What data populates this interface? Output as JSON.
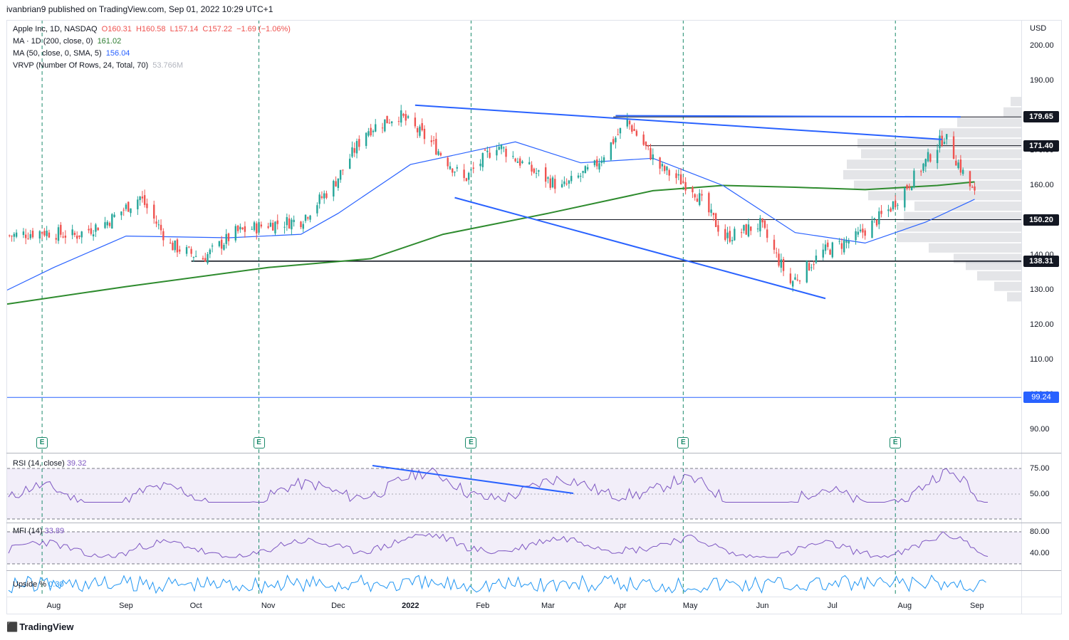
{
  "publisher": "ivanbrian9 published on TradingView.com, Sep 01, 2022 10:29 UTC+1",
  "legend": {
    "symbol": "Apple Inc, 1D, NASDAQ",
    "open": "O160.31",
    "high": "H160.58",
    "low": "L157.14",
    "close": "C157.22",
    "change": "−1.69 (−1.06%)",
    "ma200_label": "MA · 1D (200, close, 0)",
    "ma200_value": "161.02",
    "ma50_label": "MA (50, close, 0, SMA, 5)",
    "ma50_value": "156.04",
    "vrvp_label": "VRVP (Number Of Rows, 24, Total, 70)",
    "vrvp_value": "53.766M"
  },
  "currency": "USD",
  "price_axis": [
    "200.00",
    "190.00",
    "180.00",
    "170.00",
    "160.00",
    "150.00",
    "140.00",
    "130.00",
    "120.00",
    "110.00",
    "100.00",
    "90.00"
  ],
  "price_boxes": [
    {
      "label": "179.65",
      "kind": "level"
    },
    {
      "label": "171.40",
      "kind": "level"
    },
    {
      "label": "150.20",
      "kind": "level"
    },
    {
      "label": "138.31",
      "kind": "level"
    },
    {
      "label": "99.24",
      "kind": "hline"
    }
  ],
  "time_axis": [
    {
      "label": "Aug",
      "bold": false
    },
    {
      "label": "Sep",
      "bold": false
    },
    {
      "label": "Oct",
      "bold": false
    },
    {
      "label": "Nov",
      "bold": false
    },
    {
      "label": "Dec",
      "bold": false
    },
    {
      "label": "2022",
      "bold": true
    },
    {
      "label": "Feb",
      "bold": false
    },
    {
      "label": "Mar",
      "bold": false
    },
    {
      "label": "Apr",
      "bold": false
    },
    {
      "label": "May",
      "bold": false
    },
    {
      "label": "Jun",
      "bold": false
    },
    {
      "label": "Jul",
      "bold": false
    },
    {
      "label": "Aug",
      "bold": false
    },
    {
      "label": "Sep",
      "bold": false
    }
  ],
  "earnings_marker": "E",
  "rsi": {
    "label": "RSI (14, close)",
    "value": "39.32",
    "ticks": [
      "75.00",
      "50.00"
    ]
  },
  "mfi": {
    "label": "MFI (14)",
    "value": "33.89",
    "ticks": [
      "80.00",
      "40.00"
    ]
  },
  "upside": {
    "label": "Upside %",
    "value": "0.30"
  },
  "footer": "TradingView",
  "colors": {
    "up": "#26a69a",
    "down": "#ef5350",
    "ma200": "#2e8b2e",
    "ma50": "#2962ff",
    "trend": "#2962ff",
    "osc": "#7e57c2",
    "upside": "#2196f3",
    "earnings": "#1b8a6b"
  },
  "chart_data": {
    "type": "candlestick",
    "title": "Apple Inc, 1D, NASDAQ",
    "ylim": [
      88,
      209
    ],
    "x_range": [
      "2021-07-12",
      "2022-09-20"
    ],
    "ohlc_anchor_closes": [
      {
        "date": "2021-07-13",
        "close": 145.6
      },
      {
        "date": "2021-07-27",
        "close": 146.8
      },
      {
        "date": "2021-08-10",
        "close": 145.6
      },
      {
        "date": "2021-08-24",
        "close": 149.6
      },
      {
        "date": "2021-09-07",
        "close": 156.7
      },
      {
        "date": "2021-09-20",
        "close": 142.9
      },
      {
        "date": "2021-10-04",
        "close": 139.1
      },
      {
        "date": "2021-10-18",
        "close": 146.5
      },
      {
        "date": "2021-11-01",
        "close": 148.9
      },
      {
        "date": "2021-11-15",
        "close": 150.0
      },
      {
        "date": "2021-11-29",
        "close": 160.2
      },
      {
        "date": "2021-12-13",
        "close": 175.7
      },
      {
        "date": "2021-12-27",
        "close": 180.3
      },
      {
        "date": "2022-01-10",
        "close": 172.2
      },
      {
        "date": "2022-01-24",
        "close": 161.6
      },
      {
        "date": "2022-02-07",
        "close": 171.7
      },
      {
        "date": "2022-02-22",
        "close": 164.3
      },
      {
        "date": "2022-03-07",
        "close": 159.3
      },
      {
        "date": "2022-03-21",
        "close": 165.4
      },
      {
        "date": "2022-04-04",
        "close": 178.4
      },
      {
        "date": "2022-04-18",
        "close": 165.1
      },
      {
        "date": "2022-05-02",
        "close": 159.3
      },
      {
        "date": "2022-05-16",
        "close": 145.0
      },
      {
        "date": "2022-05-31",
        "close": 148.8
      },
      {
        "date": "2022-06-13",
        "close": 132.0
      },
      {
        "date": "2022-06-27",
        "close": 141.0
      },
      {
        "date": "2022-07-11",
        "close": 145.0
      },
      {
        "date": "2022-07-25",
        "close": 152.9
      },
      {
        "date": "2022-08-08",
        "close": 164.9
      },
      {
        "date": "2022-08-18",
        "close": 174.2
      },
      {
        "date": "2022-08-26",
        "close": 163.6
      },
      {
        "date": "2022-08-31",
        "close": 157.2
      }
    ],
    "ma200_series": [
      {
        "date": "2021-07-12",
        "value": 126.0
      },
      {
        "date": "2021-09-01",
        "value": 131.0
      },
      {
        "date": "2021-11-01",
        "value": 136.5
      },
      {
        "date": "2021-12-15",
        "value": 139.0
      },
      {
        "date": "2022-01-15",
        "value": 146.0
      },
      {
        "date": "2022-03-01",
        "value": 152.0
      },
      {
        "date": "2022-04-15",
        "value": 158.5
      },
      {
        "date": "2022-05-15",
        "value": 160.0
      },
      {
        "date": "2022-06-15",
        "value": 159.5
      },
      {
        "date": "2022-07-15",
        "value": 158.8
      },
      {
        "date": "2022-08-15",
        "value": 160.0
      },
      {
        "date": "2022-08-31",
        "value": 161.02
      }
    ],
    "ma50_series": [
      {
        "date": "2021-07-12",
        "value": 130.0
      },
      {
        "date": "2021-08-01",
        "value": 136.5
      },
      {
        "date": "2021-09-01",
        "value": 145.5
      },
      {
        "date": "2021-10-15",
        "value": 145.0
      },
      {
        "date": "2021-11-15",
        "value": 146.0
      },
      {
        "date": "2021-12-01",
        "value": 152.0
      },
      {
        "date": "2022-01-01",
        "value": 166.0
      },
      {
        "date": "2022-02-15",
        "value": 172.5
      },
      {
        "date": "2022-03-15",
        "value": 166.5
      },
      {
        "date": "2022-04-15",
        "value": 167.8
      },
      {
        "date": "2022-05-15",
        "value": 160.0
      },
      {
        "date": "2022-06-15",
        "value": 146.5
      },
      {
        "date": "2022-07-15",
        "value": 143.5
      },
      {
        "date": "2022-08-10",
        "value": 149.5
      },
      {
        "date": "2022-08-31",
        "value": 156.04
      }
    ],
    "trendlines": [
      {
        "from": [
          "2022-01-03",
          183.0
        ],
        "to": [
          "2022-08-17",
          173.2
        ]
      },
      {
        "from": [
          "2022-01-20",
          156.5
        ],
        "to": [
          "2022-06-28",
          127.6
        ]
      },
      {
        "from": [
          "2022-03-30",
          180.0
        ],
        "to": [
          "2022-08-25",
          179.65
        ]
      }
    ],
    "horizontal_levels": [
      {
        "value": 179.65,
        "from": "2022-03-29"
      },
      {
        "value": 171.4,
        "from": "2022-04-12"
      },
      {
        "value": 150.2,
        "from": "2022-02-24"
      },
      {
        "value": 138.31,
        "from": "2021-09-29"
      },
      {
        "value": 99.24,
        "from": "2021-07-12"
      }
    ],
    "earnings_dates": [
      "2021-07-27",
      "2021-10-28",
      "2022-01-27",
      "2022-04-28",
      "2022-07-28"
    ],
    "rsi_end": 39.32,
    "mfi_end": 33.89,
    "upside_end": 0.3
  }
}
